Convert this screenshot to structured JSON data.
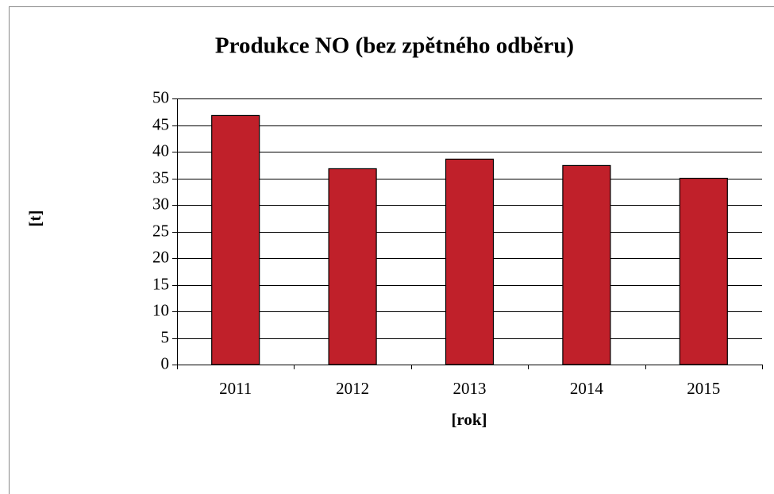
{
  "chart_data": {
    "type": "bar",
    "title": "Produkce NO (bez zpětného odběru)",
    "x_label": "[rok]",
    "y_label": "[t]",
    "categories": [
      "2011",
      "2012",
      "2013",
      "2014",
      "2015"
    ],
    "values": [
      46.8,
      36.8,
      38.6,
      37.4,
      35
    ],
    "color": "#c0202a",
    "ylim": [
      0,
      50
    ],
    "yticks": [
      0,
      5,
      10,
      15,
      20,
      25,
      30,
      35,
      40,
      45,
      50
    ],
    "grid": true
  }
}
